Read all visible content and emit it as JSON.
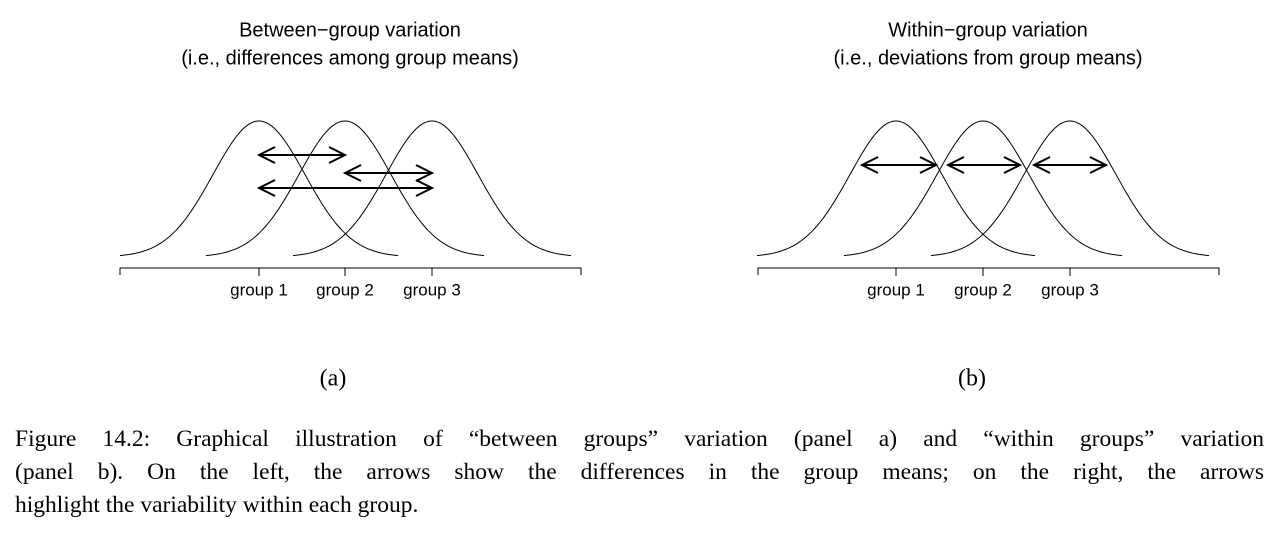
{
  "panels": [
    {
      "title_lines": [
        "Between−group variation",
        "(i.e., differences among group means)"
      ],
      "groups": [
        "group 1",
        "group 2",
        "group 3"
      ],
      "label": "(a)"
    },
    {
      "title_lines": [
        "Within−group variation",
        "(i.e., deviations from group means)"
      ],
      "groups": [
        "group 1",
        "group 2",
        "group 3"
      ],
      "label": "(b)"
    }
  ],
  "caption_lines": [
    "Figure 14.2: Graphical illustration of “between groups” variation (panel a) and “within groups” variation",
    "(panel b). On the left, the arrows show the differences in the group means; on the right, the arrows",
    "highlight the variability within each group."
  ]
}
